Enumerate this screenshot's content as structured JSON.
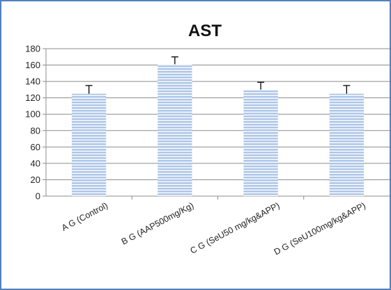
{
  "chart_data": {
    "type": "bar",
    "title": "AST",
    "xlabel": "",
    "ylabel": "",
    "categories": [
      "A G (Control)",
      "B G (AAP500mg/Kg)",
      "C G (SeU50 mg/kg&APP)",
      "D G (SeU100mg/kg&APP)"
    ],
    "values": [
      125,
      161,
      130,
      125
    ],
    "error": [
      10,
      9,
      9,
      10
    ],
    "ylim": [
      0,
      180
    ],
    "yticks": [
      "0",
      "20",
      "40",
      "60",
      "80",
      "100",
      "120",
      "140",
      "160",
      "180"
    ],
    "grid": true,
    "legend": "none",
    "colors": {
      "bar_fill": "#aec6e8",
      "bar_stripe": "#ffffff",
      "grid": "#8c8c8c",
      "frame": "#4f81bd",
      "error": "#000000"
    }
  }
}
